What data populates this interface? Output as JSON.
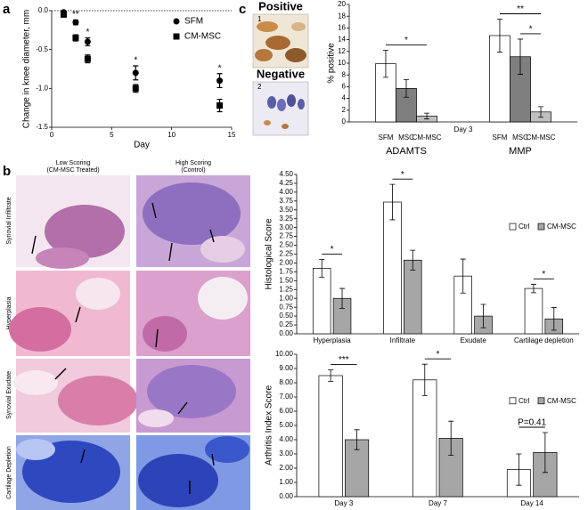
{
  "panel_labels": [
    "a",
    "b",
    "c"
  ],
  "stain_images": {
    "titles": [
      "Positive",
      "Negative"
    ],
    "numbers": [
      "1",
      "2"
    ]
  },
  "histology_images": {
    "column_headers": [
      [
        "Low Scoring",
        "(CM-MSC Treated)"
      ],
      [
        "High Scoring",
        "(Control)"
      ]
    ],
    "row_labels": [
      "Synovial Infiltrate",
      "Hyperplasia",
      "Synovial Exudate",
      "Cartilage Depletion"
    ]
  },
  "chart_data": [
    {
      "type": "scatter",
      "y_label": "Change in knee diameter, mm",
      "x_label": "Day",
      "xlim": [
        0,
        15
      ],
      "xticks": [
        0,
        5,
        10,
        15
      ],
      "ylim": [
        -1.5,
        0
      ],
      "yticks": [
        {
          "value": 0,
          "label": "0.0"
        },
        {
          "value": -0.5,
          "label": "-0.5"
        },
        {
          "value": -1,
          "label": "-1.0"
        },
        {
          "value": -1.5,
          "label": "-1.5"
        }
      ],
      "x": [
        1,
        2,
        3,
        7,
        14
      ],
      "series": [
        {
          "name": "SFM",
          "marker": "circle",
          "color": "#000000",
          "values": [
            -0.02,
            -0.15,
            -0.4,
            -0.8,
            -0.9
          ],
          "errors": [
            0.02,
            0.03,
            0.05,
            0.09,
            0.09
          ]
        },
        {
          "name": "CM-MSC",
          "marker": "square",
          "color": "#000000",
          "values": [
            -0.05,
            -0.35,
            -0.62,
            -1.0,
            -1.22
          ],
          "errors": [
            0.03,
            0.04,
            0.05,
            0.05,
            0.08
          ]
        }
      ],
      "annotations": [
        "**",
        "*",
        "*",
        "*"
      ]
    },
    {
      "type": "bar",
      "y_label": "% positive",
      "x_label": "Day 3",
      "categories": [
        "ADAMTS",
        "MMP"
      ],
      "ylim": [
        0,
        20
      ],
      "yticks": [
        0,
        2,
        4,
        6,
        8,
        10,
        12,
        14,
        16,
        18,
        20
      ],
      "series": [
        {
          "name": "SFM",
          "color": "#ffffff",
          "values": [
            9.9,
            14.7
          ],
          "errors": [
            2.3,
            2.8
          ]
        },
        {
          "name": "MSC",
          "color": "#7f7f7f",
          "values": [
            5.7,
            11.1
          ],
          "errors": [
            1.5,
            3.0
          ]
        },
        {
          "name": "CM-MSC",
          "color": "#bfbfbf",
          "values": [
            1.0,
            1.7
          ],
          "errors": [
            0.5,
            0.9
          ]
        }
      ],
      "annotations": [
        "*",
        "**",
        "*"
      ]
    },
    {
      "type": "bar",
      "y_label": "Histological Score",
      "legend": "top-right",
      "categories": [
        "Hyperplasia",
        "Infiltrate",
        "Exudate",
        "Cartilage depletion"
      ],
      "ylim": [
        0,
        4.5
      ],
      "yticks": [
        {
          "value": 0,
          "label": "0.00"
        },
        {
          "value": 0.25,
          "label": "0.25"
        },
        {
          "value": 0.5,
          "label": "0.50"
        },
        {
          "value": 0.75,
          "label": "0.75"
        },
        {
          "value": 1,
          "label": "1.00"
        },
        {
          "value": 1.25,
          "label": "1.25"
        },
        {
          "value": 1.5,
          "label": "1.50"
        },
        {
          "value": 1.75,
          "label": "1.75"
        },
        {
          "value": 2,
          "label": "2.00"
        },
        {
          "value": 2.25,
          "label": "2.25"
        },
        {
          "value": 2.5,
          "label": "2.50"
        },
        {
          "value": 2.75,
          "label": "2.75"
        },
        {
          "value": 3,
          "label": "3.00"
        },
        {
          "value": 3.25,
          "label": "3.25"
        },
        {
          "value": 3.5,
          "label": "3.50"
        },
        {
          "value": 3.75,
          "label": "3.75"
        },
        {
          "value": 4,
          "label": "4.00"
        },
        {
          "value": 4.25,
          "label": "4.25"
        },
        {
          "value": 4.5,
          "label": "4.50"
        }
      ],
      "series": [
        {
          "name": "Ctrl",
          "color": "#ffffff",
          "values": [
            1.85,
            3.72,
            1.63,
            1.28
          ],
          "errors": [
            0.25,
            0.5,
            0.48,
            0.12
          ]
        },
        {
          "name": "CM-MSC",
          "color": "#a6a6a6",
          "values": [
            1.0,
            2.08,
            0.5,
            0.42
          ],
          "errors": [
            0.28,
            0.28,
            0.33,
            0.32
          ]
        }
      ],
      "annotations": [
        "*",
        "*",
        "*"
      ]
    },
    {
      "type": "bar",
      "y_label": "Arthritis Index Score",
      "legend": "top-right",
      "categories": [
        "Day 3",
        "Day 7",
        "Day 14"
      ],
      "ylim": [
        0,
        10
      ],
      "yticks": [
        {
          "value": 0,
          "label": "0.00"
        },
        {
          "value": 1,
          "label": "1.00"
        },
        {
          "value": 2,
          "label": "2.00"
        },
        {
          "value": 3,
          "label": "3.00"
        },
        {
          "value": 4,
          "label": "4.00"
        },
        {
          "value": 5,
          "label": "5.00"
        },
        {
          "value": 6,
          "label": "6.00"
        },
        {
          "value": 7,
          "label": "7.00"
        },
        {
          "value": 8,
          "label": "8.00"
        },
        {
          "value": 9,
          "label": "9.00"
        },
        {
          "value": 10,
          "label": "10.00"
        }
      ],
      "series": [
        {
          "name": "Ctrl",
          "color": "#ffffff",
          "values": [
            8.5,
            8.2,
            1.9
          ],
          "errors": [
            0.4,
            1.1,
            1.1
          ]
        },
        {
          "name": "CM-MSC",
          "color": "#a6a6a6",
          "values": [
            4.0,
            4.1,
            3.1
          ],
          "errors": [
            0.7,
            1.2,
            1.4
          ]
        }
      ],
      "annotations": [
        "***",
        "*",
        "P=0.41"
      ]
    }
  ]
}
